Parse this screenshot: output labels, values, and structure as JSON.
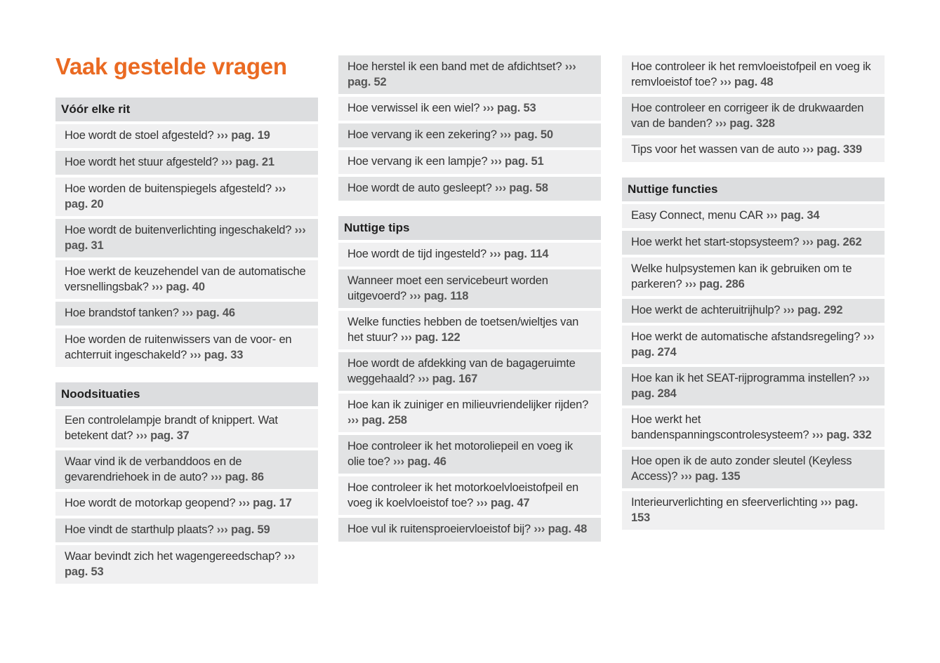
{
  "title": "Vaak gestelde vragen",
  "ref_arrow": "›››",
  "columns": [
    [
      {
        "header": "Vóór elke rit",
        "items": [
          {
            "q": "Hoe wordt de stoel afgesteld?",
            "ref": "pag. 19"
          },
          {
            "q": "Hoe wordt het stuur afgesteld?",
            "ref": "pag. 21"
          },
          {
            "q": "Hoe worden de buitenspiegels afgesteld?",
            "ref": "pag. 20"
          },
          {
            "q": "Hoe wordt de buitenverlichting ingeschakeld?",
            "ref": "pag. 31"
          },
          {
            "q": "Hoe werkt de keuzehendel van de automatische versnellingsbak?",
            "ref": "pag. 40"
          },
          {
            "q": "Hoe brandstof tanken?",
            "ref": "pag. 46"
          },
          {
            "q": "Hoe worden de ruitenwissers van de voor- en achterruit ingeschakeld?",
            "ref": "pag. 33"
          }
        ]
      },
      {
        "header": "Noodsituaties",
        "items": [
          {
            "q": "Een controlelampje brandt of knippert. Wat betekent dat?",
            "ref": "pag. 37"
          },
          {
            "q": "Waar vind ik de verbanddoos en de gevarendriehoek in de auto?",
            "ref": "pag. 86"
          },
          {
            "q": "Hoe wordt de motorkap geopend?",
            "ref": "pag. 17"
          },
          {
            "q": "Hoe vindt de starthulp plaats?",
            "ref": "pag. 59"
          },
          {
            "q": "Waar bevindt zich het wagengereedschap?",
            "ref": "pag. 53"
          }
        ]
      }
    ],
    [
      {
        "header": "",
        "items": [
          {
            "q": "Hoe herstel ik een band met de afdichtset?",
            "ref": "pag. 52"
          },
          {
            "q": "Hoe verwissel ik een wiel?",
            "ref": "pag. 53"
          },
          {
            "q": "Hoe vervang ik een zekering?",
            "ref": "pag. 50"
          },
          {
            "q": "Hoe vervang ik een lampje?",
            "ref": "pag. 51"
          },
          {
            "q": "Hoe wordt de auto gesleept?",
            "ref": "pag. 58"
          }
        ]
      },
      {
        "header": "Nuttige tips",
        "items": [
          {
            "q": "Hoe wordt de tijd ingesteld?",
            "ref": "pag. 114"
          },
          {
            "q": "Wanneer moet een servicebeurt worden uitgevoerd?",
            "ref": "pag. 118"
          },
          {
            "q": "Welke functies hebben de toetsen/wieltjes van het stuur?",
            "ref": "pag. 122"
          },
          {
            "q": "Hoe wordt de afdekking van de bagageruimte weggehaald?",
            "ref": "pag. 167"
          },
          {
            "q": "Hoe kan ik zuiniger en milieuvriendelijker rijden?",
            "ref": "pag. 258"
          },
          {
            "q": "Hoe controleer ik het motoroliepeil en voeg ik olie toe?",
            "ref": "pag. 46"
          },
          {
            "q": "Hoe controleer ik het motorkoelvloeistofpeil en voeg ik koelvloeistof toe?",
            "ref": "pag. 47"
          },
          {
            "q": "Hoe vul ik ruitensproeiervloeistof bij?",
            "ref": "pag. 48"
          }
        ]
      }
    ],
    [
      {
        "header": "",
        "items": [
          {
            "q": "Hoe controleer ik het remvloeistofpeil en voeg ik remvloeistof toe?",
            "ref": "pag. 48"
          },
          {
            "q": "Hoe controleer en corrigeer ik de drukwaarden van de banden?",
            "ref": "pag. 328"
          },
          {
            "q": "Tips voor het wassen van de auto",
            "ref": "pag. 339"
          }
        ]
      },
      {
        "header": "Nuttige functies",
        "items": [
          {
            "q": "Easy Connect, menu CAR",
            "ref": "pag. 34"
          },
          {
            "q": "Hoe werkt het start-stopsysteem?",
            "ref": "pag. 262"
          },
          {
            "q": "Welke hulpsystemen kan ik gebruiken om te parkeren?",
            "ref": "pag. 286"
          },
          {
            "q": "Hoe werkt de achteruitrijhulp?",
            "ref": "pag. 292"
          },
          {
            "q": "Hoe werkt de automatische afstandsregeling?",
            "ref": "pag. 274"
          },
          {
            "q": "Hoe kan ik het SEAT-rijprogramma instellen?",
            "ref": "pag. 284"
          },
          {
            "q": "Hoe werkt het bandenspanningscontrolesysteem?",
            "ref": "pag. 332"
          },
          {
            "q": "Hoe open ik de auto zonder sleutel (Keyless Access)?",
            "ref": "pag. 135"
          },
          {
            "q": "Interieurverlichting en sfeerverlichting",
            "ref": "pag. 153"
          }
        ]
      }
    ]
  ],
  "colors": {
    "title": "#ea6a22",
    "header_bg": "#dcdddf",
    "row_light": "#f0f0f1",
    "row_dark": "#e2e3e4"
  }
}
